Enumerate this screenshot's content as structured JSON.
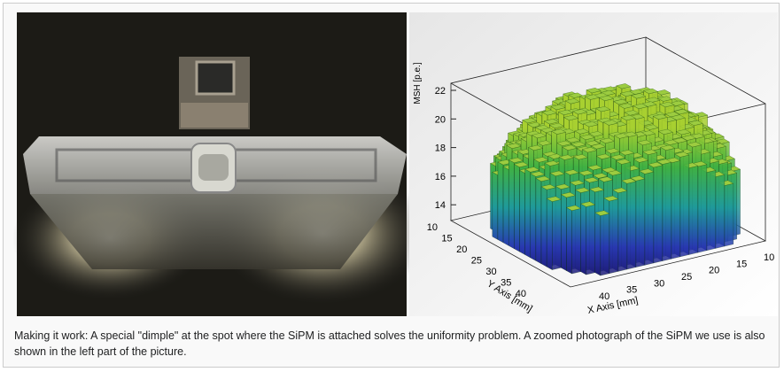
{
  "figure": {
    "plot": {
      "z_axis": {
        "label": "MSH [p.e.]",
        "ticks": [
          "22",
          "20",
          "18",
          "16",
          "14"
        ]
      },
      "y_axis": {
        "label": "Y Axis [mm]",
        "ticks": [
          "10",
          "15",
          "20",
          "25",
          "30",
          "35",
          "40"
        ]
      },
      "x_axis": {
        "label": "X Axis [mm]",
        "ticks": [
          "40",
          "35",
          "30",
          "25",
          "20",
          "15",
          "10"
        ]
      }
    },
    "caption": "Making it work: A special \"dimple\" at the spot where the SiPM is attached solves the uniformity problem. A zoomed photograph of the SiPM we use is also shown in the left part of the picture."
  }
}
